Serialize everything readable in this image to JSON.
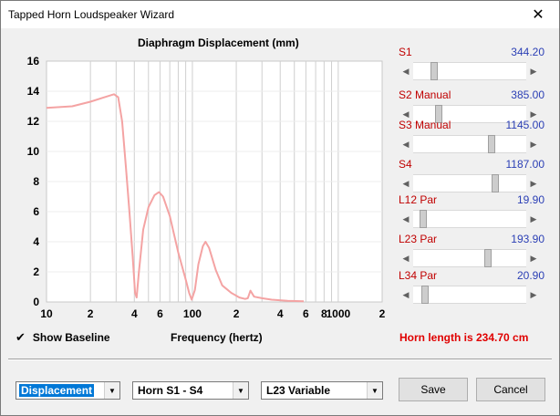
{
  "window": {
    "title": "Tapped Horn Loudspeaker Wizard",
    "close_glyph": "✕"
  },
  "chart_data": {
    "type": "line",
    "title": "Diaphragm Displacement (mm)",
    "xlabel": "Frequency (hertz)",
    "ylabel": "",
    "x_scale": "log",
    "xlim": [
      10,
      2000
    ],
    "ylim": [
      0,
      16
    ],
    "yticks": [
      "0",
      "2",
      "4",
      "6",
      "8",
      "10",
      "12",
      "14",
      "16"
    ],
    "xticks": [
      {
        "value": 10,
        "label": "10"
      },
      {
        "value": 20,
        "label": "2"
      },
      {
        "value": 40,
        "label": "4"
      },
      {
        "value": 60,
        "label": "6"
      },
      {
        "value": 100,
        "label": "100"
      },
      {
        "value": 200,
        "label": "2"
      },
      {
        "value": 400,
        "label": "4"
      },
      {
        "value": 600,
        "label": "6"
      },
      {
        "value": 800,
        "label": "8"
      },
      {
        "value": 1000,
        "label": "1000"
      },
      {
        "value": 2000,
        "label": "2"
      }
    ],
    "grid": true,
    "line_color": "#f4a3a3",
    "series": [
      {
        "points": [
          [
            10,
            12.9
          ],
          [
            15,
            13.0
          ],
          [
            20,
            13.3
          ],
          [
            25,
            13.6
          ],
          [
            29,
            13.8
          ],
          [
            31,
            13.6
          ],
          [
            33,
            12.0
          ],
          [
            35,
            9.0
          ],
          [
            37,
            6.0
          ],
          [
            39,
            3.0
          ],
          [
            40.5,
            0.6
          ],
          [
            41.5,
            0.3
          ],
          [
            43,
            2.0
          ],
          [
            46,
            4.8
          ],
          [
            50,
            6.3
          ],
          [
            55,
            7.1
          ],
          [
            59,
            7.3
          ],
          [
            63,
            7.0
          ],
          [
            70,
            5.7
          ],
          [
            80,
            3.3
          ],
          [
            90,
            1.5
          ],
          [
            95,
            0.6
          ],
          [
            99,
            0.15
          ],
          [
            104,
            0.8
          ],
          [
            110,
            2.5
          ],
          [
            118,
            3.7
          ],
          [
            123,
            4.0
          ],
          [
            130,
            3.6
          ],
          [
            145,
            2.1
          ],
          [
            160,
            1.1
          ],
          [
            185,
            0.6
          ],
          [
            210,
            0.3
          ],
          [
            230,
            0.2
          ],
          [
            240,
            0.25
          ],
          [
            250,
            0.75
          ],
          [
            265,
            0.35
          ],
          [
            300,
            0.25
          ],
          [
            350,
            0.15
          ],
          [
            450,
            0.08
          ],
          [
            580,
            0.05
          ]
        ]
      }
    ]
  },
  "sliders": [
    {
      "label": "S1",
      "value": "344.20",
      "position": 0.16
    },
    {
      "label": "S2  Manual",
      "value": "385.00",
      "position": 0.21
    },
    {
      "label": "S3  Manual",
      "value": "1145.00",
      "position": 0.71
    },
    {
      "label": "S4",
      "value": "1187.00",
      "position": 0.74
    },
    {
      "label": "L12  Par",
      "value": "19.90",
      "position": 0.06
    },
    {
      "label": "L23  Par",
      "value": "193.90",
      "position": 0.67
    },
    {
      "label": "L34  Par",
      "value": "20.90",
      "position": 0.08
    }
  ],
  "footer": {
    "show_baseline_checked": true,
    "show_baseline_label": "Show Baseline",
    "horn_length": "Horn length is 234.70 cm",
    "combo1": "Displacement",
    "combo2": "Horn S1 - S4",
    "combo3": "L23 Variable",
    "save_label": "Save",
    "cancel_label": "Cancel"
  }
}
